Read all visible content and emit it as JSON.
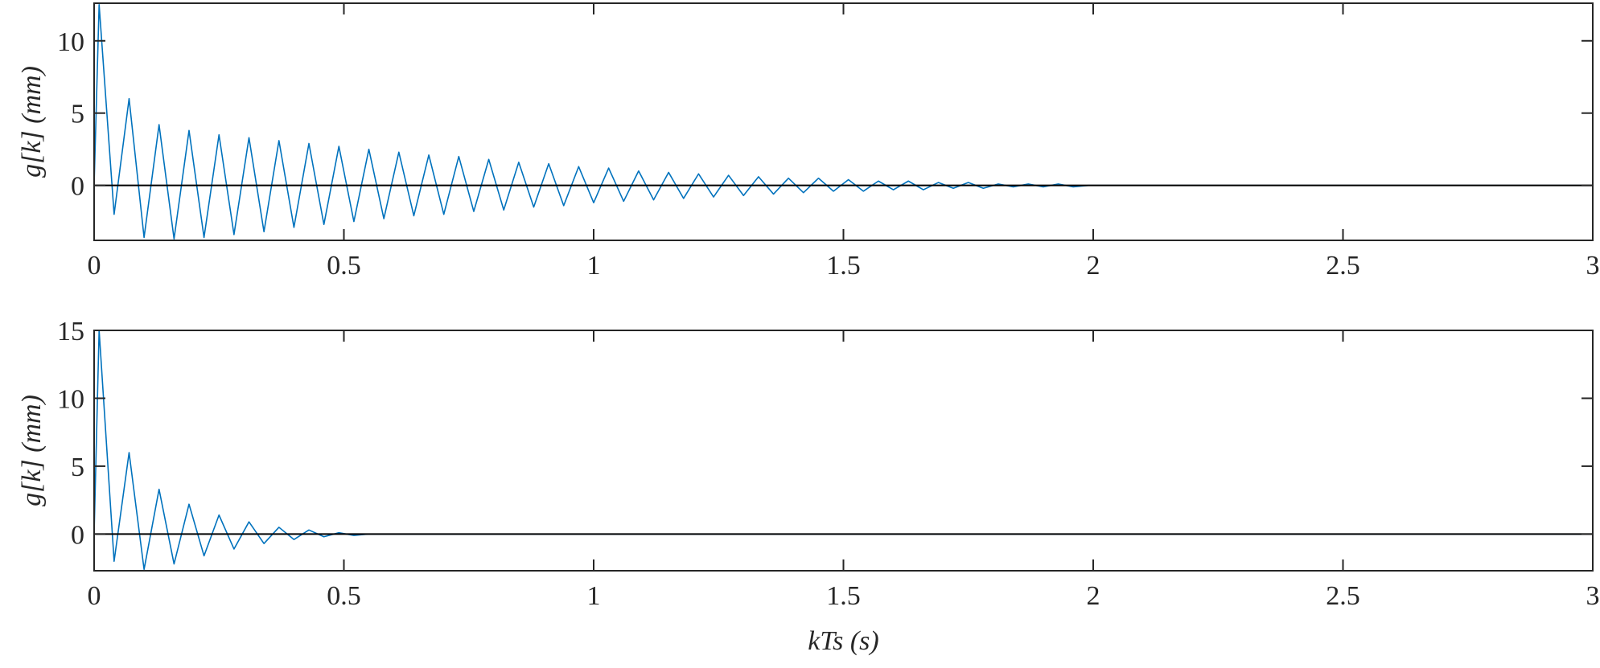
{
  "chart_data": [
    {
      "type": "line",
      "ylabel": "g[k] (mm)",
      "color": "#0072bd",
      "xlim": [
        0,
        3
      ],
      "ylim": [
        -3.8,
        12.6
      ],
      "xticks": [
        0,
        0.5,
        1,
        1.5,
        2,
        2.5,
        3
      ],
      "yticks": [
        0,
        5,
        10
      ],
      "x": [
        0,
        0.01,
        0.04,
        0.07,
        0.1,
        0.13,
        0.16,
        0.19,
        0.22,
        0.25,
        0.28,
        0.31,
        0.34,
        0.37,
        0.4,
        0.43,
        0.46,
        0.49,
        0.52,
        0.55,
        0.58,
        0.61,
        0.64,
        0.67,
        0.7,
        0.73,
        0.76,
        0.79,
        0.82,
        0.85,
        0.88,
        0.91,
        0.94,
        0.97,
        1.0,
        1.03,
        1.06,
        1.09,
        1.12,
        1.15,
        1.18,
        1.21,
        1.24,
        1.27,
        1.3,
        1.33,
        1.36,
        1.39,
        1.42,
        1.45,
        1.48,
        1.51,
        1.54,
        1.57,
        1.6,
        1.63,
        1.66,
        1.69,
        1.72,
        1.75,
        1.78,
        1.81,
        1.84,
        1.87,
        1.9,
        1.93,
        1.96,
        1.99,
        3
      ],
      "values": [
        0,
        12.5,
        -2,
        6,
        -3.6,
        4.2,
        -3.7,
        3.8,
        -3.6,
        3.5,
        -3.4,
        3.3,
        -3.2,
        3.1,
        -2.9,
        2.9,
        -2.7,
        2.7,
        -2.5,
        2.5,
        -2.3,
        2.3,
        -2.1,
        2.1,
        -2.0,
        2.0,
        -1.8,
        1.8,
        -1.7,
        1.6,
        -1.5,
        1.5,
        -1.4,
        1.3,
        -1.2,
        1.2,
        -1.1,
        1.0,
        -1.0,
        0.9,
        -0.9,
        0.8,
        -0.8,
        0.7,
        -0.7,
        0.6,
        -0.6,
        0.5,
        -0.5,
        0.5,
        -0.4,
        0.4,
        -0.4,
        0.3,
        -0.3,
        0.3,
        -0.3,
        0.2,
        -0.2,
        0.2,
        -0.2,
        0.1,
        -0.1,
        0.1,
        -0.1,
        0.1,
        -0.1,
        0,
        0
      ]
    },
    {
      "type": "line",
      "ylabel": "g[k] (mm)",
      "xlabel": "kTs (s)",
      "color": "#0072bd",
      "xlim": [
        0,
        3
      ],
      "ylim": [
        -2.7,
        15
      ],
      "xticks": [
        0,
        0.5,
        1,
        1.5,
        2,
        2.5,
        3
      ],
      "yticks": [
        0,
        5,
        10,
        15
      ],
      "x": [
        0,
        0.01,
        0.04,
        0.07,
        0.1,
        0.13,
        0.16,
        0.19,
        0.22,
        0.25,
        0.28,
        0.31,
        0.34,
        0.37,
        0.4,
        0.43,
        0.46,
        0.49,
        0.52,
        0.55,
        3
      ],
      "values": [
        0,
        15,
        -2,
        6,
        -2.6,
        3.3,
        -2.2,
        2.2,
        -1.6,
        1.4,
        -1.1,
        0.9,
        -0.7,
        0.5,
        -0.4,
        0.3,
        -0.2,
        0.1,
        -0.1,
        0,
        0
      ]
    }
  ]
}
